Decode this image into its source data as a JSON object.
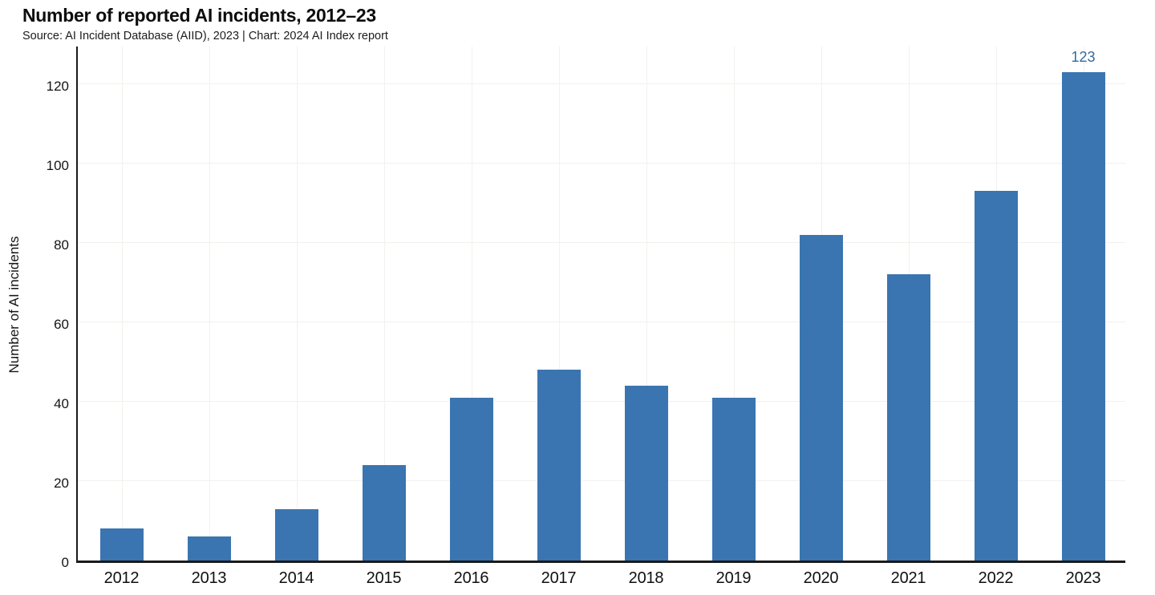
{
  "chart_data": {
    "type": "bar",
    "title": "Number of reported AI incidents, 2012–23",
    "subtitle": "Source: AI Incident Database (AIID), 2023 | Chart: 2024 AI Index report",
    "categories": [
      "2012",
      "2013",
      "2014",
      "2015",
      "2016",
      "2017",
      "2018",
      "2019",
      "2020",
      "2021",
      "2022",
      "2023"
    ],
    "values": [
      8,
      6,
      13,
      24,
      41,
      48,
      44,
      41,
      82,
      72,
      93,
      123
    ],
    "xlabel": "",
    "ylabel": "Number of AI incidents",
    "yticks": [
      0,
      20,
      40,
      60,
      80,
      100,
      120
    ],
    "ylim": [
      0,
      130
    ],
    "grid": true,
    "legend": false,
    "annotations": [
      {
        "category": "2023",
        "text": "123"
      }
    ],
    "colors": {
      "bar": "#3a75b1",
      "annotation": "#35699f",
      "axis": "#1a1a1a",
      "gridline": "#f3f1ee",
      "background": "#ffffff",
      "text": "#111111"
    }
  }
}
